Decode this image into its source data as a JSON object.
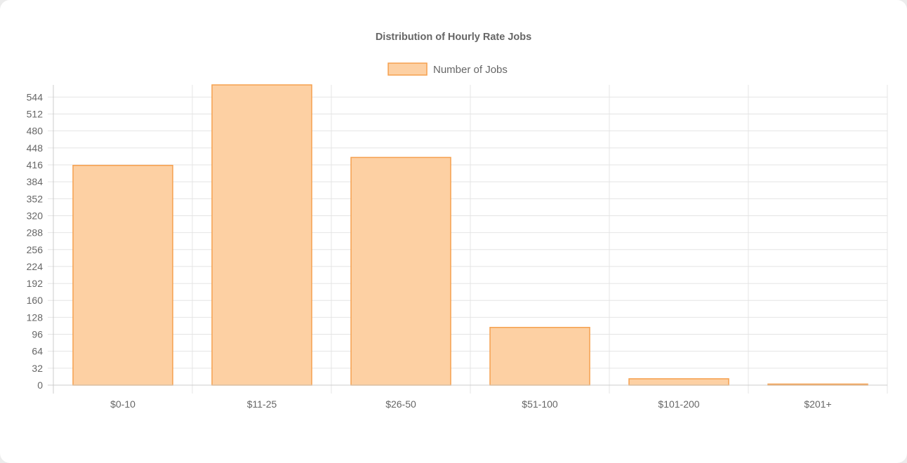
{
  "chart_data": {
    "type": "bar",
    "title": "Distribution of Hourly Rate Jobs",
    "categories": [
      "$0-10",
      "$11-25",
      "$26-50",
      "$51-100",
      "$101-200",
      "$201+"
    ],
    "series": [
      {
        "name": "Number of Jobs",
        "values": [
          415,
          567,
          430,
          109,
          12,
          2
        ]
      }
    ],
    "yticks": [
      0,
      32,
      64,
      96,
      128,
      160,
      192,
      224,
      256,
      288,
      320,
      352,
      384,
      416,
      448,
      480,
      512,
      544
    ],
    "ylim": [
      0,
      567
    ],
    "xlabel": "",
    "ylabel": "",
    "legend": "top",
    "grid": true,
    "colors": {
      "bar_fill": "#fdd0a3",
      "bar_border": "#f5a04f",
      "grid": "#e4e4e4",
      "axis": "#cccccc",
      "text": "#666666"
    }
  }
}
